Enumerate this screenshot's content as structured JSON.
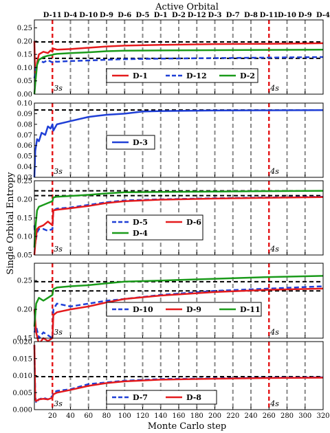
{
  "figure": {
    "top_axis_title": "Active Orbital",
    "xlabel": "Monte Carlo step",
    "ylabel": "Single Orbital Entropy"
  },
  "chart_data": {
    "type": "line",
    "x_range": [
      0,
      320
    ],
    "x_ticks": [
      20,
      40,
      60,
      80,
      100,
      120,
      140,
      160,
      180,
      200,
      220,
      240,
      260,
      280,
      300,
      320
    ],
    "top_labels": [
      "D-11",
      "D-4",
      "D-10",
      "D-9",
      "D-6",
      "D-5",
      "D-1",
      "D-2",
      "D-12",
      "D-3",
      "D-7",
      "D-8",
      "D-11",
      "D-10",
      "D-9",
      "D-4"
    ],
    "top_label_x": [
      20,
      40,
      60,
      80,
      100,
      120,
      140,
      160,
      180,
      200,
      220,
      240,
      260,
      280,
      300,
      320
    ],
    "gray_dashed_x": [
      40,
      60,
      80,
      100,
      120,
      140,
      160,
      180,
      200,
      220,
      240,
      280,
      300
    ],
    "red_dashed_x": [
      20,
      260
    ],
    "annotations": [
      "3s",
      "4s"
    ],
    "annotation_x": [
      20,
      260
    ],
    "panels": [
      {
        "ylim": [
          0,
          0.28
        ],
        "yticks": [
          0.0,
          0.05,
          0.1,
          0.15,
          0.2,
          0.25
        ],
        "tick_labels": [
          "0.00",
          "0.05",
          "0.10",
          "0.15",
          "0.20",
          "0.25"
        ],
        "reference_lines": [
          0.197,
          0.135
        ],
        "series": [
          {
            "name": "D-1",
            "color": "#e41a1c",
            "style": "solid",
            "x": [
              0,
              1,
              3,
              5,
              10,
              15,
              18,
              20,
              21,
              25,
              40,
              60,
              80,
              100,
              140,
              200,
              260,
              320
            ],
            "y": [
              0.2,
              0.05,
              0.12,
              0.15,
              0.16,
              0.155,
              0.165,
              0.16,
              0.172,
              0.168,
              0.17,
              0.175,
              0.18,
              0.183,
              0.186,
              0.189,
              0.19,
              0.192
            ]
          },
          {
            "name": "D-12",
            "color": "#1f3fd6",
            "style": "dashed",
            "x": [
              0,
              2,
              5,
              10,
              15,
              20,
              21,
              25,
              40,
              60,
              80,
              100,
              140,
              200,
              260,
              320
            ],
            "y": [
              0.06,
              0.1,
              0.13,
              0.12,
              0.128,
              0.12,
              0.125,
              0.122,
              0.125,
              0.127,
              0.13,
              0.132,
              0.134,
              0.136,
              0.138,
              0.14
            ]
          },
          {
            "name": "D-2",
            "color": "#1a9a1a",
            "style": "solid",
            "x": [
              0,
              1,
              3,
              5,
              10,
              15,
              20,
              21,
              25,
              40,
              60,
              80,
              100,
              140,
              200,
              260,
              320
            ],
            "y": [
              0.0,
              0.04,
              0.11,
              0.13,
              0.14,
              0.145,
              0.148,
              0.15,
              0.152,
              0.155,
              0.158,
              0.162,
              0.164,
              0.165,
              0.166,
              0.167,
              0.168
            ]
          }
        ],
        "legend": [
          "D-1",
          "D-12",
          "D-2"
        ]
      },
      {
        "ylim": [
          0.03,
          0.1
        ],
        "yticks": [
          0.03,
          0.04,
          0.05,
          0.06,
          0.07,
          0.08,
          0.09,
          0.1
        ],
        "tick_labels": [
          "0.03",
          "0.04",
          "0.05",
          "0.06",
          "0.07",
          "0.08",
          "0.09",
          "0.10"
        ],
        "reference_lines": [
          0.0935
        ],
        "series": [
          {
            "name": "D-3",
            "color": "#1f3fd6",
            "style": "solid",
            "x": [
              0,
              1,
              3,
              5,
              8,
              12,
              15,
              18,
              20,
              21,
              25,
              40,
              60,
              70,
              80,
              100,
              120,
              140,
              200,
              260,
              320
            ],
            "y": [
              0.03,
              0.055,
              0.066,
              0.064,
              0.072,
              0.07,
              0.078,
              0.076,
              0.08,
              0.074,
              0.08,
              0.083,
              0.087,
              0.088,
              0.089,
              0.09,
              0.092,
              0.0925,
              0.093,
              0.0932,
              0.0934
            ]
          }
        ],
        "legend": [
          "D-3"
        ]
      },
      {
        "ylim": [
          0.05,
          0.25
        ],
        "yticks": [
          0.05,
          0.1,
          0.15,
          0.2,
          0.25
        ],
        "tick_labels": [
          "0.05",
          "0.10",
          "0.15",
          "0.20",
          "0.25"
        ],
        "reference_lines": [
          0.223,
          0.21
        ],
        "series": [
          {
            "name": "D-5",
            "color": "#1f3fd6",
            "style": "dashed",
            "x": [
              0,
              1,
              3,
              5,
              10,
              15,
              20,
              21,
              25,
              40,
              60,
              80,
              100,
              140,
              200,
              260,
              320
            ],
            "y": [
              0.13,
              0.08,
              0.11,
              0.12,
              0.12,
              0.115,
              0.12,
              0.17,
              0.175,
              0.178,
              0.185,
              0.192,
              0.197,
              0.2,
              0.203,
              0.205,
              0.207
            ]
          },
          {
            "name": "D-6",
            "color": "#e41a1c",
            "style": "solid",
            "x": [
              0,
              1,
              3,
              5,
              10,
              15,
              20,
              21,
              25,
              40,
              60,
              80,
              100,
              140,
              200,
              260,
              320
            ],
            "y": [
              0.05,
              0.08,
              0.12,
              0.125,
              0.13,
              0.14,
              0.13,
              0.17,
              0.172,
              0.176,
              0.182,
              0.19,
              0.195,
              0.199,
              0.202,
              0.204,
              0.206
            ]
          },
          {
            "name": "D-4",
            "color": "#1a9a1a",
            "style": "solid",
            "x": [
              0,
              1,
              3,
              5,
              10,
              15,
              20,
              21,
              25,
              40,
              60,
              80,
              100,
              140,
              200,
              260,
              320
            ],
            "y": [
              0.07,
              0.12,
              0.17,
              0.18,
              0.185,
              0.19,
              0.195,
              0.205,
              0.207,
              0.209,
              0.212,
              0.216,
              0.219,
              0.22,
              0.221,
              0.222,
              0.223
            ]
          }
        ],
        "legend": [
          "D-5",
          "D-6",
          "D-4"
        ]
      },
      {
        "ylim": [
          0.15,
          0.28
        ],
        "yticks": [
          0.15,
          0.2,
          0.25
        ],
        "tick_labels": [
          "0.15",
          "0.20",
          "0.25"
        ],
        "reference_lines": [
          0.248,
          0.232
        ],
        "series": [
          {
            "name": "D-10",
            "color": "#1f3fd6",
            "style": "dashed",
            "x": [
              0,
              2,
              5,
              10,
              15,
              20,
              21,
              25,
              40,
              60,
              80,
              100,
              140,
              200,
              260,
              320
            ],
            "y": [
              0.16,
              0.17,
              0.15,
              0.16,
              0.155,
              0.15,
              0.2,
              0.21,
              0.205,
              0.21,
              0.215,
              0.218,
              0.225,
              0.232,
              0.236,
              0.24
            ]
          },
          {
            "name": "D-9",
            "color": "#e41a1c",
            "style": "solid",
            "x": [
              0,
              2,
              5,
              10,
              15,
              20,
              21,
              25,
              40,
              60,
              80,
              100,
              140,
              200,
              260,
              320
            ],
            "y": [
              0.2,
              0.16,
              0.14,
              0.15,
              0.145,
              0.15,
              0.19,
              0.195,
              0.2,
              0.205,
              0.212,
              0.218,
              0.224,
              0.23,
              0.234,
              0.236
            ]
          },
          {
            "name": "D-11",
            "color": "#1a9a1a",
            "style": "solid",
            "x": [
              0,
              2,
              5,
              10,
              15,
              20,
              21,
              25,
              40,
              60,
              80,
              100,
              140,
              200,
              260,
              320
            ],
            "y": [
              0.17,
              0.21,
              0.22,
              0.215,
              0.22,
              0.225,
              0.235,
              0.238,
              0.24,
              0.242,
              0.245,
              0.248,
              0.25,
              0.253,
              0.256,
              0.258
            ]
          }
        ],
        "legend": [
          "D-10",
          "D-9",
          "D-11"
        ]
      },
      {
        "ylim": [
          0.0,
          0.02
        ],
        "yticks": [
          0.0,
          0.005,
          0.01,
          0.015,
          0.02
        ],
        "tick_labels": [
          "0.000",
          "0.005",
          "0.010",
          "0.015",
          "0.020"
        ],
        "reference_lines": [
          0.0097
        ],
        "series": [
          {
            "name": "D-7",
            "color": "#1f3fd6",
            "style": "dashed",
            "x": [
              0,
              1,
              2,
              5,
              10,
              15,
              20,
              21,
              25,
              40,
              60,
              80,
              100,
              140,
              200,
              260,
              320
            ],
            "y": [
              0.019,
              0.004,
              0.002,
              0.003,
              0.0035,
              0.003,
              0.004,
              0.005,
              0.0055,
              0.006,
              0.0075,
              0.008,
              0.0085,
              0.009,
              0.0092,
              0.0094,
              0.0095
            ]
          },
          {
            "name": "D-8",
            "color": "#e41a1c",
            "style": "solid",
            "x": [
              0,
              1,
              2,
              5,
              10,
              15,
              20,
              21,
              25,
              40,
              60,
              80,
              100,
              140,
              200,
              260,
              320
            ],
            "y": [
              0.019,
              0.003,
              0.0025,
              0.003,
              0.0032,
              0.003,
              0.0035,
              0.0045,
              0.005,
              0.0058,
              0.007,
              0.0078,
              0.0083,
              0.0088,
              0.0091,
              0.0093,
              0.0094
            ]
          }
        ],
        "legend": [
          "D-7",
          "D-8"
        ]
      }
    ]
  }
}
